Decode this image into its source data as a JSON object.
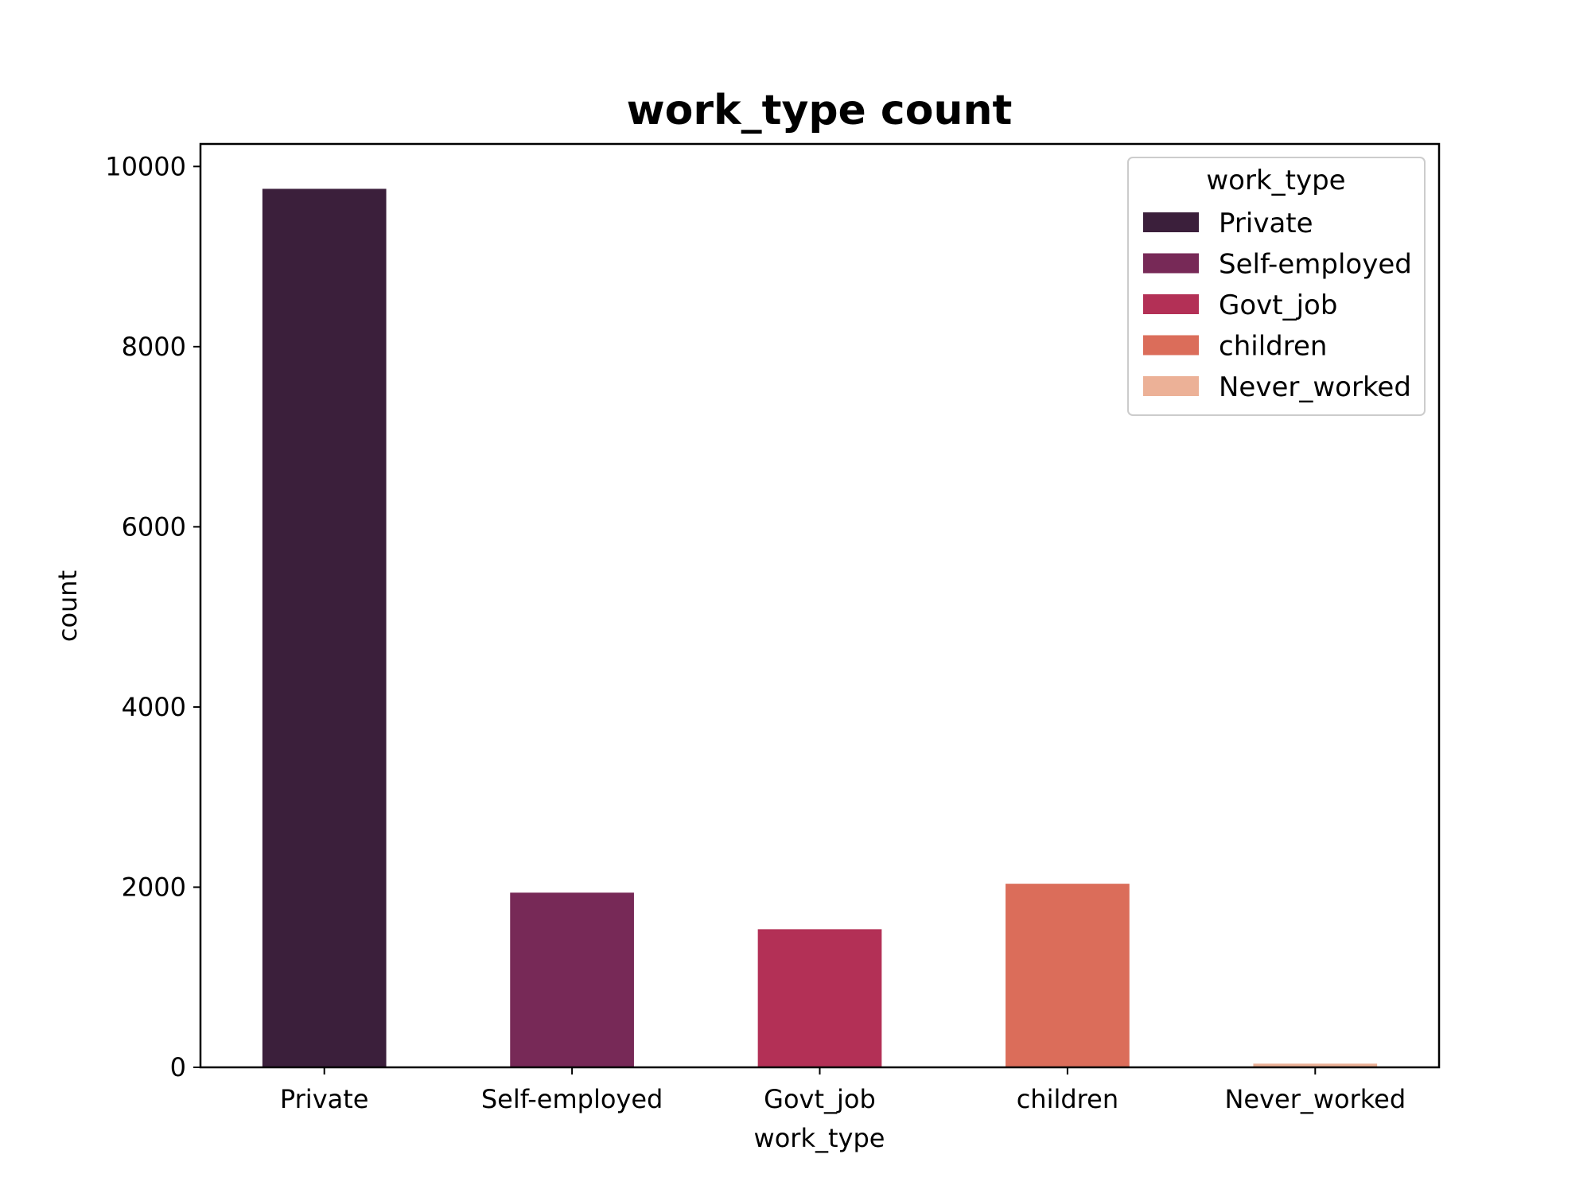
{
  "chart_data": {
    "type": "bar",
    "title": "work_type count",
    "xlabel": "work_type",
    "ylabel": "count",
    "categories": [
      "Private",
      "Self-employed",
      "Govt_job",
      "children",
      "Never_worked"
    ],
    "values": [
      9752,
      1939,
      1533,
      2038,
      41
    ],
    "colors": [
      "#3b1f3b",
      "#772957",
      "#b33056",
      "#db6d5a",
      "#ecb197"
    ],
    "ylim": [
      0,
      10250
    ],
    "yticks": [
      0,
      2000,
      4000,
      6000,
      8000,
      10000
    ],
    "ytick_labels": [
      "0",
      "2000",
      "4000",
      "6000",
      "8000",
      "10000"
    ],
    "grid": false,
    "legend": {
      "title": "work_type",
      "placement": "top-right",
      "entries": [
        "Private",
        "Self-employed",
        "Govt_job",
        "children",
        "Never_worked"
      ]
    }
  }
}
